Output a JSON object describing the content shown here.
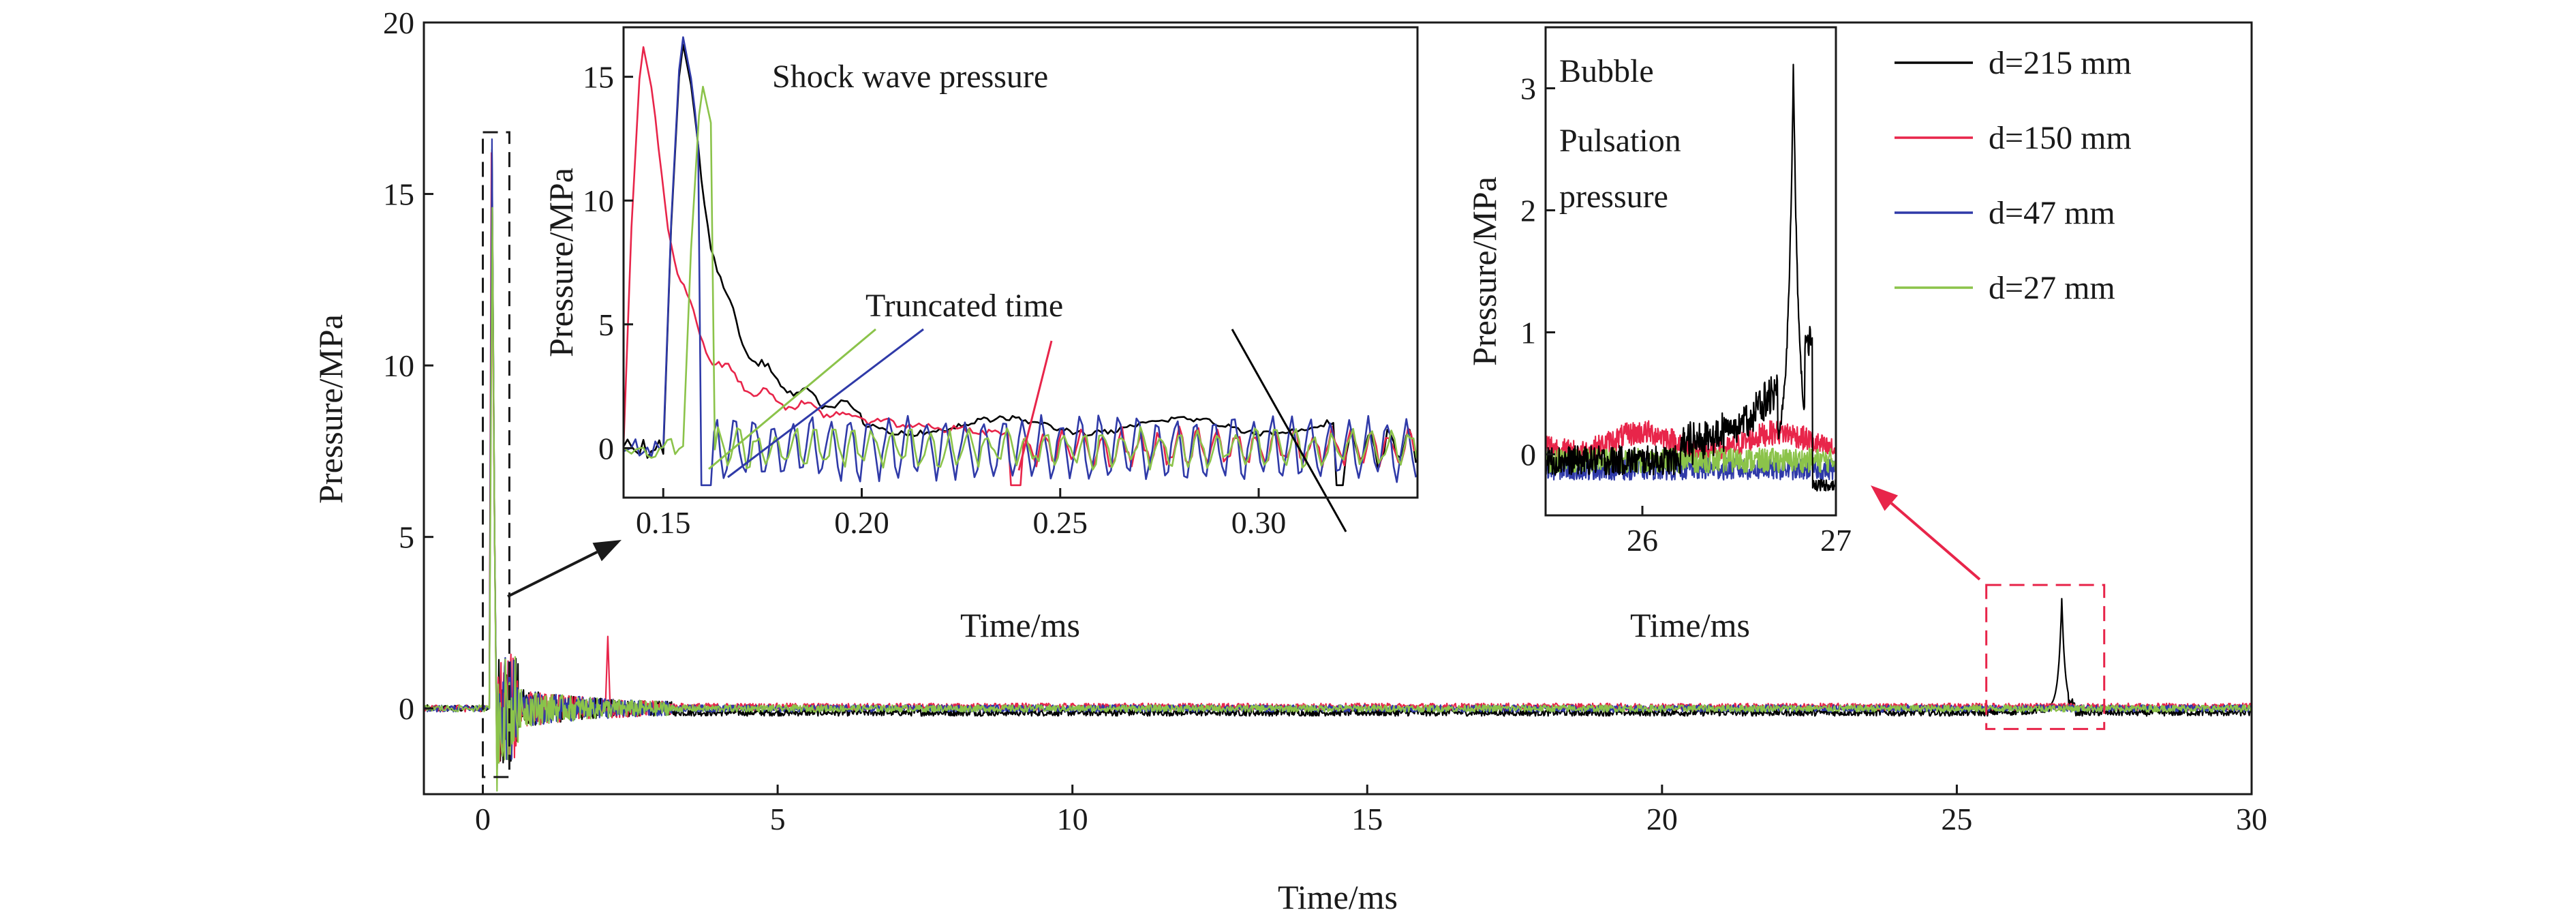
{
  "chart_data": {
    "main": {
      "type": "line",
      "xlabel": "Time/ms",
      "ylabel": "Pressure/MPa",
      "xlim": [
        -1,
        30
      ],
      "ylim": [
        -2.5,
        20
      ],
      "xticks": [
        0,
        5,
        10,
        15,
        20,
        25,
        30
      ],
      "yticks": [
        0,
        5,
        10,
        15,
        20
      ],
      "legend_position": "top-right",
      "series": [
        {
          "name": "d=215 mm",
          "color": "#000000",
          "peak_time": 0.155,
          "peak": 16.3,
          "bubble_time": 26.78,
          "bubble_peak": 3.2
        },
        {
          "name": "d=150 mm",
          "color": "#e8254a",
          "peak_time": 0.145,
          "peak": 16.2
        },
        {
          "name": "d=47 mm",
          "color": "#2f3aa8",
          "peak_time": 0.155,
          "peak": 16.6
        },
        {
          "name": "d=27 mm",
          "color": "#8bc34a",
          "peak_time": 0.16,
          "peak": 14.6
        }
      ],
      "zoom_box_left": {
        "x": [
          0.0,
          0.45
        ],
        "y": [
          -2.0,
          16.8
        ]
      },
      "zoom_box_right": {
        "x": [
          25.5,
          27.5
        ],
        "y": [
          -0.6,
          3.6
        ]
      }
    },
    "inset_shock": {
      "type": "line",
      "title": "Shock wave pressure",
      "xlabel": "Time/ms",
      "ylabel": "Pressure/MPa",
      "xlim": [
        0.14,
        0.34
      ],
      "ylim": [
        -2,
        17
      ],
      "xticks": [
        0.15,
        0.2,
        0.25,
        0.3
      ],
      "xticklabels": [
        "0.15",
        "0.20",
        "0.25",
        "0.30"
      ],
      "yticks": [
        0,
        5,
        10,
        15
      ],
      "annotation": "Truncated time",
      "truncated_times": {
        "d=215 mm": 0.322,
        "d=150 mm": 0.24,
        "d=47 mm": 0.162,
        "d=27 mm": 0.158
      }
    },
    "inset_bubble": {
      "type": "line",
      "title_lines": [
        "Bubble",
        "Pulsation",
        "pressure"
      ],
      "xlabel": "Time/ms",
      "ylabel": "Pressure/MPa",
      "xlim": [
        25.5,
        27
      ],
      "ylim": [
        -0.5,
        3.5
      ],
      "xticks": [
        26,
        27
      ],
      "yticks": [
        0,
        1,
        2,
        3
      ]
    }
  }
}
